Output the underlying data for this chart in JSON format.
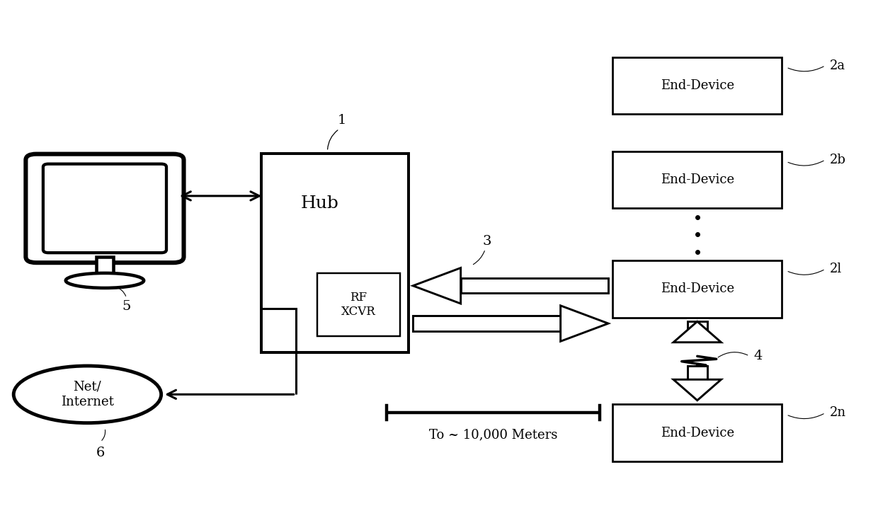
{
  "bg_color": "#ffffff",
  "line_color": "#000000",
  "figsize": [
    12.4,
    7.15
  ],
  "dpi": 100,
  "hub_label": "Hub",
  "hub_num": "1",
  "rf_label": "RF\nXCVR",
  "net_label": "Net/\nInternet",
  "net_num": "6",
  "monitor_num": "5",
  "arrow3_label": "3",
  "arrow4_label": "4",
  "distance_label": "To ~ 10,000 Meters"
}
